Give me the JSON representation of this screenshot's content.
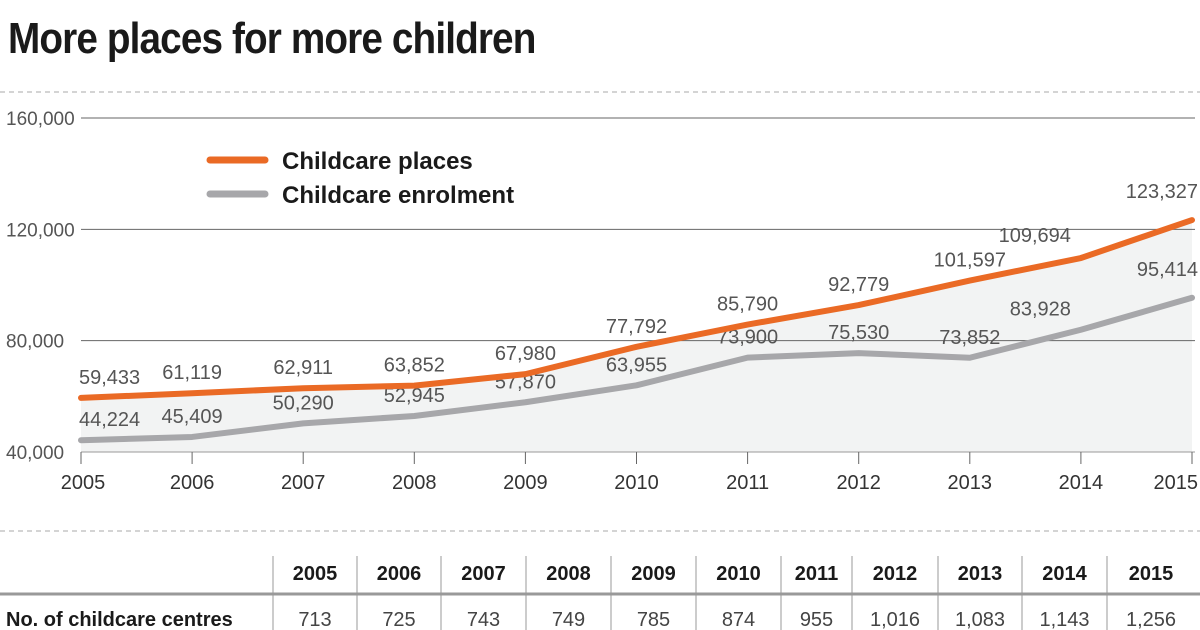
{
  "chart_data": {
    "type": "line",
    "title": "More places for more children",
    "x": [
      "2005",
      "2006",
      "2007",
      "2008",
      "2009",
      "2010",
      "2011",
      "2012",
      "2013",
      "2014",
      "2015"
    ],
    "ylim": [
      40000,
      160000
    ],
    "yticks": [
      40000,
      80000,
      120000,
      160000
    ],
    "ytick_labels": [
      "40,000",
      "80,000",
      "120,000",
      "160,000"
    ],
    "grid": true,
    "legend_position": "top-left",
    "series": [
      {
        "name": "Childcare places",
        "color": "#ea6a25",
        "values": [
          59433,
          61119,
          62911,
          63852,
          67980,
          77792,
          85790,
          92779,
          101597,
          109694,
          123327
        ],
        "labels": [
          "59,433",
          "61,119",
          "62,911",
          "63,852",
          "67,980",
          "77,792",
          "85,790",
          "92,779",
          "101,597",
          "109,694",
          "123,327"
        ]
      },
      {
        "name": "Childcare enrolment",
        "color": "#a7a7aa",
        "values": [
          44224,
          45409,
          50290,
          52945,
          57870,
          63955,
          73900,
          75530,
          73852,
          83928,
          95414
        ],
        "labels": [
          "44,224",
          "45,409",
          "50,290",
          "52,945",
          "57,870",
          "63,955",
          "73,900",
          "75,530",
          "73,852",
          "83,928",
          "95,414"
        ]
      }
    ],
    "area_fill_color": "#f2f3f3"
  },
  "table": {
    "headers": [
      "2005",
      "2006",
      "2007",
      "2008",
      "2009",
      "2010",
      "2011",
      "2012",
      "2013",
      "2014",
      "2015"
    ],
    "row_label": "No. of childcare centres",
    "values": [
      "713",
      "725",
      "743",
      "749",
      "785",
      "874",
      "955",
      "1,016",
      "1,083",
      "1,143",
      "1,256"
    ]
  }
}
